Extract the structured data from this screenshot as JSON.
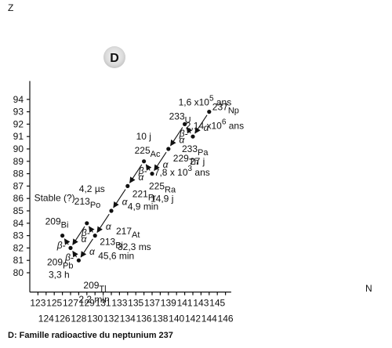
{
  "figure": {
    "badge_letter": "D",
    "caption": "D: Famille radioactive du neptunium 237",
    "axis": {
      "y_label": "Z",
      "x_label": "N",
      "y_ticks": [
        80,
        81,
        82,
        83,
        84,
        85,
        86,
        87,
        88,
        89,
        90,
        91,
        92,
        93,
        94
      ],
      "x_ticks_top": [
        123,
        125,
        127,
        129,
        131,
        133,
        135,
        137,
        139,
        141,
        143,
        145
      ],
      "x_ticks_bottom": [
        124,
        126,
        128,
        130,
        132,
        134,
        136,
        138,
        140,
        142,
        144,
        146
      ]
    },
    "nodes": [
      {
        "id": "np237",
        "N": 144,
        "Z": 93,
        "mass": "237",
        "symbol": "Np",
        "half_life": "2,14 x10",
        "exp": "6",
        "unit": " ans"
      },
      {
        "id": "u233",
        "N": 141,
        "Z": 92,
        "mass": "233",
        "symbol": "U",
        "half_life": "1,6 x10",
        "exp": "5",
        "unit": " ans"
      },
      {
        "id": "pa233",
        "N": 142,
        "Z": 91,
        "mass": "233",
        "symbol": "Pa",
        "half_life": "27 j"
      },
      {
        "id": "th229",
        "N": 139,
        "Z": 90,
        "mass": "229",
        "symbol": "Th",
        "half_life": "7,8 x 10",
        "exp": "3",
        "unit": " ans"
      },
      {
        "id": "ra225",
        "N": 137,
        "Z": 88,
        "mass": "225",
        "symbol": "Ra",
        "half_life": "14,9  j"
      },
      {
        "id": "ac225",
        "N": 136,
        "Z": 89,
        "mass": "225",
        "symbol": "Ac",
        "half_life": "10  j"
      },
      {
        "id": "fr221",
        "N": 134,
        "Z": 87,
        "mass": "221",
        "symbol": "Fr",
        "half_life": "4,9  min"
      },
      {
        "id": "at217",
        "N": 132,
        "Z": 85,
        "mass": "217",
        "symbol": "At",
        "half_life": "32,3 ms"
      },
      {
        "id": "bi213",
        "N": 130,
        "Z": 83,
        "mass": "213",
        "symbol": "Bi",
        "half_life": "45,6  min"
      },
      {
        "id": "po213",
        "N": 129,
        "Z": 84,
        "mass": "213",
        "symbol": "Po",
        "half_life": "4,2 µs"
      },
      {
        "id": "tl209",
        "N": 128,
        "Z": 81,
        "mass": "209",
        "symbol": "Tl",
        "half_life": "2,2 min"
      },
      {
        "id": "pb209",
        "N": 127,
        "Z": 82,
        "mass": "209",
        "symbol": "Pb",
        "half_life": "3,3 h"
      },
      {
        "id": "bi209",
        "N": 126,
        "Z": 83,
        "mass": "209",
        "symbol": "Bi",
        "half_life": "Stable (?)"
      }
    ],
    "decays": [
      {
        "from": "np237",
        "to": "pa233",
        "type": "α"
      },
      {
        "from": "pa233",
        "to": "u233",
        "type": "β-"
      },
      {
        "from": "u233",
        "to": "th229",
        "type": "α"
      },
      {
        "from": "th229",
        "to": "ra225",
        "type": "α"
      },
      {
        "from": "ra225",
        "to": "ac225",
        "type": "β-"
      },
      {
        "from": "ac225",
        "to": "fr221",
        "type": "α"
      },
      {
        "from": "fr221",
        "to": "at217",
        "type": "α"
      },
      {
        "from": "at217",
        "to": "bi213",
        "type": "α"
      },
      {
        "from": "bi213",
        "to": "po213",
        "type": "β-"
      },
      {
        "from": "bi213",
        "to": "tl209",
        "type": "α"
      },
      {
        "from": "po213",
        "to": "pb209",
        "type": "α"
      },
      {
        "from": "tl209",
        "to": "pb209",
        "type": "β-"
      },
      {
        "from": "pb209",
        "to": "bi209",
        "type": "β-"
      }
    ]
  }
}
